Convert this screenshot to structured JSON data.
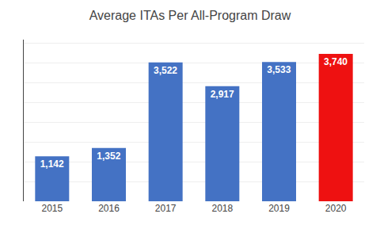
{
  "chart_data": {
    "type": "bar",
    "title": "Average ITAs Per All-Program Draw",
    "categories": [
      "2015",
      "2016",
      "2017",
      "2018",
      "2019",
      "2020"
    ],
    "values": [
      1142,
      1352,
      3522,
      2917,
      3533,
      3740
    ],
    "value_labels": [
      "1,142",
      "1,352",
      "3,522",
      "2,917",
      "3,533",
      "3,740"
    ],
    "data_labels": true,
    "colors": [
      "#4472C4",
      "#4472C4",
      "#4472C4",
      "#4472C4",
      "#4472C4",
      "#EE1111"
    ],
    "ylim": [
      0,
      4100
    ],
    "yticks": [
      500,
      1000,
      1500,
      2000,
      2500,
      3000,
      3500,
      4000
    ],
    "grid": true,
    "tick_labels": "x"
  }
}
